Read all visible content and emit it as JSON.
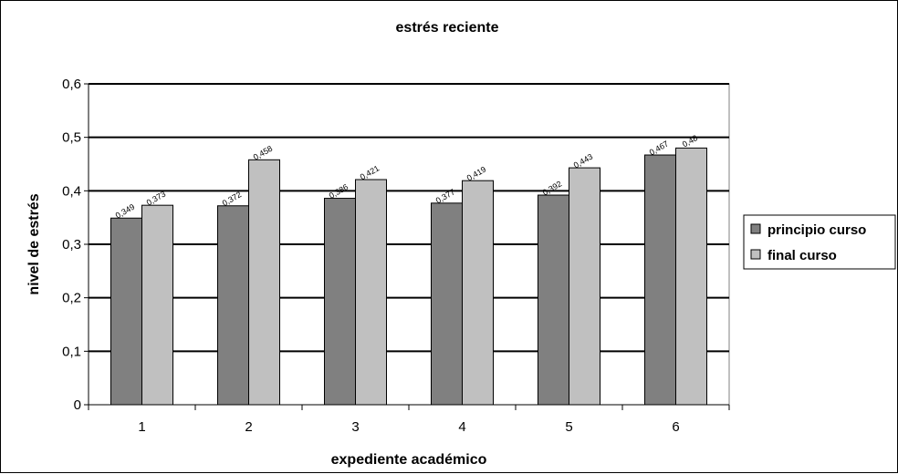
{
  "chart_data": {
    "type": "bar",
    "title": "estrés reciente",
    "xlabel": "expediente académico",
    "ylabel": "nivel de estrés",
    "categories": [
      "1",
      "2",
      "3",
      "4",
      "5",
      "6"
    ],
    "ylim": [
      0,
      0.6
    ],
    "yticks": [
      "0",
      "0,1",
      "0,2",
      "0,3",
      "0,4",
      "0,5",
      "0,6"
    ],
    "grid": true,
    "legend_position": "right",
    "series": [
      {
        "name": "principio curso",
        "color": "#808080",
        "values": [
          0.349,
          0.372,
          0.386,
          0.377,
          0.392,
          0.467
        ],
        "labels": [
          "0,349",
          "0,372",
          "0,386",
          "0,377",
          "0,392",
          "0,467"
        ]
      },
      {
        "name": "final curso",
        "color": "#c0c0c0",
        "values": [
          0.373,
          0.458,
          0.421,
          0.419,
          0.443,
          0.48
        ],
        "labels": [
          "0,373",
          "0,458",
          "0,421",
          "0,419",
          "0,443",
          "0,48"
        ]
      }
    ]
  }
}
